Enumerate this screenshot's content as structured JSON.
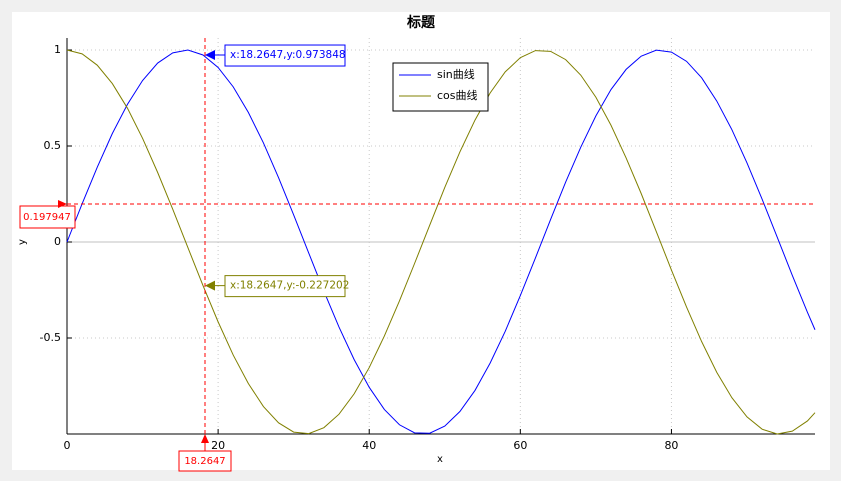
{
  "chart_data": {
    "type": "line",
    "title": "标题",
    "xlabel": "x",
    "ylabel": "y",
    "x": [
      0,
      2,
      4,
      6,
      8,
      10,
      12,
      14,
      16,
      18,
      20,
      22,
      24,
      26,
      28,
      30,
      32,
      34,
      36,
      38,
      40,
      42,
      44,
      46,
      48,
      50,
      52,
      54,
      56,
      58,
      60,
      62,
      64,
      66,
      68,
      70,
      72,
      74,
      76,
      78,
      80,
      82,
      84,
      86,
      88,
      90,
      92,
      94,
      96,
      98,
      99
    ],
    "series": [
      {
        "name": "sin曲线",
        "color": "#0000ff",
        "values": [
          0,
          0.199,
          0.389,
          0.565,
          0.717,
          0.841,
          0.932,
          0.985,
          1.0,
          0.974,
          0.909,
          0.808,
          0.675,
          0.516,
          0.335,
          0.141,
          -0.058,
          -0.256,
          -0.443,
          -0.612,
          -0.757,
          -0.872,
          -0.952,
          -0.994,
          -0.996,
          -0.959,
          -0.883,
          -0.773,
          -0.631,
          -0.465,
          -0.279,
          -0.083,
          0.117,
          0.312,
          0.494,
          0.657,
          0.794,
          0.899,
          0.968,
          0.999,
          0.989,
          0.941,
          0.855,
          0.734,
          0.585,
          0.412,
          0.223,
          0.025,
          -0.174,
          -0.366,
          -0.457
        ]
      },
      {
        "name": "cos曲线",
        "color": "#808000",
        "values": [
          1,
          0.98,
          0.921,
          0.825,
          0.697,
          0.54,
          0.362,
          0.17,
          -0.029,
          -0.227,
          -0.416,
          -0.589,
          -0.737,
          -0.857,
          -0.942,
          -0.99,
          -0.998,
          -0.967,
          -0.897,
          -0.791,
          -0.654,
          -0.49,
          -0.307,
          -0.112,
          0.087,
          0.284,
          0.469,
          0.635,
          0.776,
          0.886,
          0.96,
          0.997,
          0.993,
          0.95,
          0.869,
          0.754,
          0.608,
          0.438,
          0.252,
          0.054,
          -0.146,
          -0.339,
          -0.519,
          -0.679,
          -0.811,
          -0.911,
          -0.975,
          -1.0,
          -0.985,
          -0.932,
          -0.889
        ]
      }
    ],
    "xlim": [
      0,
      99
    ],
    "ylim": [
      -1,
      1
    ],
    "xticks": [
      0,
      20,
      40,
      60,
      80
    ],
    "yticks": [
      -0.5,
      0,
      0.5,
      1
    ],
    "grid": true,
    "legend": "top-center",
    "crosshair": {
      "x": 18.2647,
      "y": 0.197947,
      "color": "#ff0000"
    },
    "annotations": [
      {
        "text": "x:18.2647,y:0.973848",
        "x": 18.2647,
        "y": 0.973848,
        "color": "#0000ff"
      },
      {
        "text": "x:18.2647,y:-0.227202",
        "x": 18.2647,
        "y": -0.227202,
        "color": "#808000"
      }
    ]
  }
}
